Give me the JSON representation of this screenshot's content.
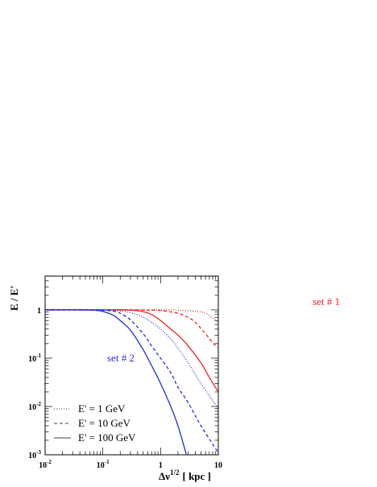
{
  "chart_data": {
    "type": "line",
    "title": "",
    "xlabel": "Δν",
    "xlabel_sup": "1/2",
    "xlabel_unit": "[ kpc ]",
    "ylabel": "E / E'",
    "xscale": "log",
    "yscale": "log",
    "xlim": [
      0.01,
      10
    ],
    "ylim": [
      0.001,
      5
    ],
    "x_ticks": [
      {
        "base": "10",
        "exp": "-2"
      },
      {
        "base": "10",
        "exp": "-1"
      },
      {
        "base": "1",
        "exp": ""
      },
      {
        "base": "10",
        "exp": ""
      }
    ],
    "y_ticks": [
      {
        "base": "10",
        "exp": "-3"
      },
      {
        "base": "10",
        "exp": "-2"
      },
      {
        "base": "10",
        "exp": "-1"
      },
      {
        "base": "1",
        "exp": ""
      }
    ],
    "annotations": [
      {
        "text": "set # 1",
        "color": "#e8241c"
      },
      {
        "text": "set # 2",
        "color": "#1f2fd8"
      }
    ],
    "legend": {
      "placement": "bottom-left",
      "entries": [
        {
          "label": "E' = 1 GeV",
          "style": "dotted"
        },
        {
          "label": "E' = 10 GeV",
          "style": "dashed"
        },
        {
          "label": "E' = 100 GeV",
          "style": "solid"
        }
      ]
    },
    "series": [
      {
        "set": "set # 1",
        "energy": "E' = 1 GeV",
        "style": "dotted",
        "color": "#e8241c",
        "x": [
          0.01,
          0.05,
          0.1,
          0.3,
          0.6,
          1,
          2,
          4,
          6,
          10
        ],
        "y": [
          1,
          1,
          1,
          1,
          1,
          1,
          0.99,
          0.93,
          0.85,
          0.55
        ]
      },
      {
        "set": "set # 1",
        "energy": "E' = 10 GeV",
        "style": "dashed",
        "color": "#e8241c",
        "x": [
          0.01,
          0.1,
          0.3,
          0.6,
          1,
          2,
          3,
          4,
          6,
          8,
          10
        ],
        "y": [
          1,
          1,
          1,
          0.99,
          0.97,
          0.85,
          0.7,
          0.55,
          0.32,
          0.21,
          0.16
        ]
      },
      {
        "set": "set # 1",
        "energy": "E' = 100 GeV",
        "style": "solid",
        "color": "#e8241c",
        "x": [
          0.01,
          0.1,
          0.3,
          0.5,
          0.7,
          1,
          1.5,
          2,
          3,
          5,
          7,
          10
        ],
        "y": [
          1,
          1,
          0.99,
          0.92,
          0.8,
          0.6,
          0.4,
          0.3,
          0.18,
          0.08,
          0.04,
          0.02
        ]
      },
      {
        "set": "set # 2",
        "energy": "E' = 1 GeV",
        "style": "dotted",
        "color": "#1f2fd8",
        "x": [
          0.01,
          0.1,
          0.2,
          0.4,
          0.7,
          1,
          1.5,
          2,
          3,
          5,
          10
        ],
        "y": [
          1,
          0.99,
          0.95,
          0.8,
          0.55,
          0.4,
          0.25,
          0.16,
          0.08,
          0.03,
          0.009
        ]
      },
      {
        "set": "set # 2",
        "energy": "E' = 10 GeV",
        "style": "dashed",
        "color": "#1f2fd8",
        "x": [
          0.01,
          0.05,
          0.1,
          0.15,
          0.2,
          0.3,
          0.5,
          0.7,
          1,
          1.5,
          2,
          3,
          5,
          10
        ],
        "y": [
          1,
          1,
          0.98,
          0.94,
          0.85,
          0.62,
          0.32,
          0.18,
          0.1,
          0.05,
          0.025,
          0.012,
          0.004,
          0.0011
        ]
      },
      {
        "set": "set # 2",
        "energy": "E' = 100 GeV",
        "style": "solid",
        "color": "#1f2fd8",
        "x": [
          0.01,
          0.05,
          0.08,
          0.1,
          0.15,
          0.2,
          0.3,
          0.5,
          0.7,
          1,
          1.5,
          2,
          2.8
        ],
        "y": [
          1,
          1,
          0.97,
          0.93,
          0.78,
          0.6,
          0.38,
          0.15,
          0.07,
          0.03,
          0.01,
          0.004,
          0.001
        ]
      }
    ]
  }
}
